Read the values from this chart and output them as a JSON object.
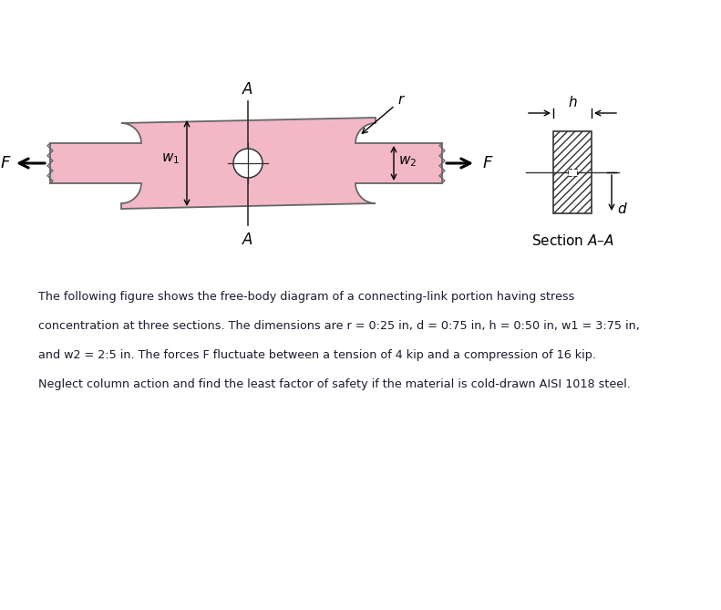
{
  "bg_color": "#ffffff",
  "pink_fill": "#f2b8c6",
  "pink_stroke": "#666666",
  "paragraph_line1": "The following figure shows the free-body diagram of a connecting-link portion having stress",
  "paragraph_line2": "concentration at three sections. The dimensions are r = 0:25 in, d = 0:75 in, h = 0:50 in, w1 = 3:75 in,",
  "paragraph_line3": "and w2 = 2:5 in. The forces F fluctuate between a tension of 4 kip and a compression of 16 kip.",
  "paragraph_line4": "Neglect column action and find the least factor of safety if the material is cold-drawn AISI 1018 steel.",
  "text_color": "#1a1a2e",
  "arrow_color": "#111111",
  "section_label": "Section A–A"
}
